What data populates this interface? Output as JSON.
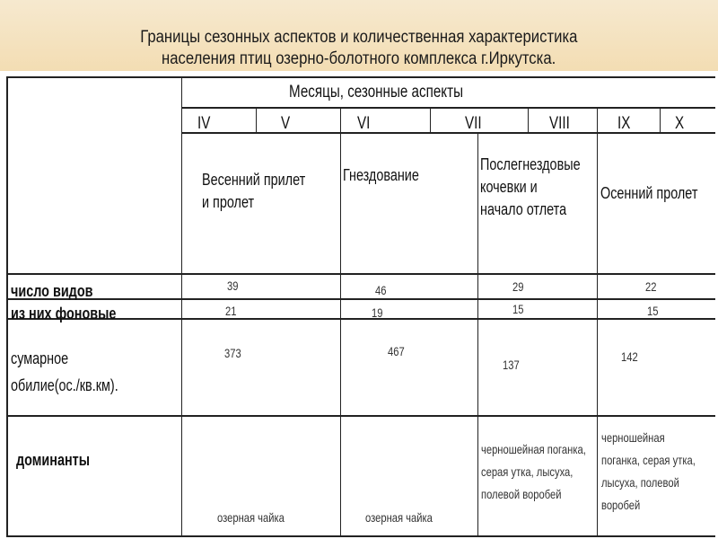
{
  "title": {
    "line1": "Границы сезонных аспектов и количественная характеристика",
    "line2": "населения птиц озерно-болотного комплекса г.Иркутска."
  },
  "table": {
    "header": "Месяцы, сезонные аспекты",
    "months": [
      "IV",
      "V",
      "VI",
      "VII",
      "VIII",
      "IX",
      "X"
    ],
    "aspects": [
      [
        "Весенний прилет",
        "и пролет"
      ],
      [
        "Гнездование"
      ],
      [
        "Послегнездовые",
        "кочевки и",
        "начало отлета"
      ],
      [
        "Осенний пролет"
      ]
    ],
    "rows": [
      {
        "label": [
          "число видов"
        ],
        "values": [
          "39",
          "46",
          "29",
          "22"
        ]
      },
      {
        "label": [
          "из них фоновые"
        ],
        "values": [
          "21",
          "19",
          "15",
          "15"
        ]
      },
      {
        "label": [
          "сумарное",
          "обилие(ос./кв.км)."
        ],
        "values": [
          "373",
          "467",
          "137",
          "142"
        ]
      },
      {
        "label": [
          "доминанты"
        ],
        "values": [
          [
            "озерная чайка"
          ],
          [
            "озерная чайка"
          ],
          [
            "черношейная поганка,",
            "серая утка, лысуха,",
            "полевой воробей"
          ],
          [
            "черношейная",
            "поганка, серая утка,",
            "лысуха, полевой",
            "воробей"
          ]
        ]
      }
    ]
  }
}
